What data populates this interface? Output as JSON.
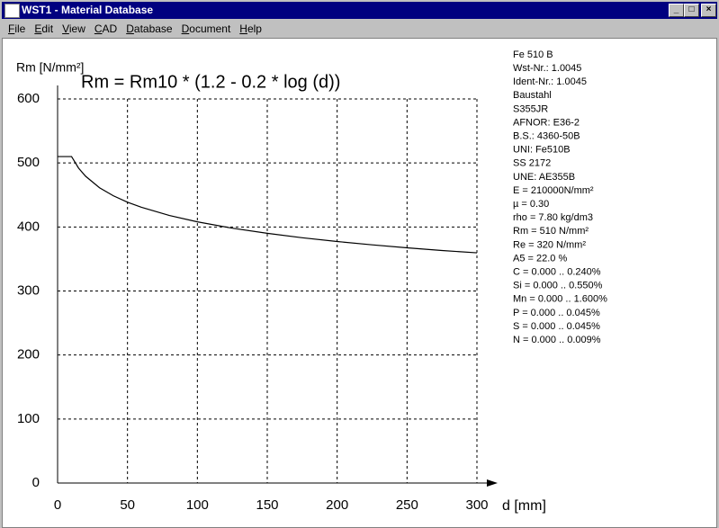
{
  "window_title": "WST1  -  Material Database",
  "menu": [
    "File",
    "Edit",
    "View",
    "CAD",
    "Database",
    "Document",
    "Help"
  ],
  "chart_data": {
    "type": "line",
    "title": "Rm = Rm10 * (1.2 - 0.2 * log (d))",
    "y_label": "Rm [N/mm²]",
    "x_label": "d [mm]",
    "x": [
      0,
      5,
      10,
      15,
      20,
      30,
      40,
      50,
      60,
      80,
      100,
      125,
      150,
      175,
      200,
      225,
      250,
      275,
      300
    ],
    "series": [
      {
        "name": "Rm",
        "color": "#000000",
        "values": [
          510,
          510,
          510,
          492,
          479.3,
          461.3,
          448.6,
          438.7,
          430.7,
          417.9,
          408,
          398.1,
          390.1,
          383.2,
          377.3,
          372.1,
          367.4,
          363.2,
          359.6
        ]
      }
    ],
    "xlim": [
      0,
      300
    ],
    "ylim": [
      0,
      600
    ],
    "xticks": [
      0,
      50,
      100,
      150,
      200,
      250,
      300
    ],
    "yticks": [
      0,
      100,
      200,
      300,
      400,
      500,
      600
    ],
    "grid": true
  },
  "info": [
    "Fe 510 B",
    "Wst-Nr.: 1.0045",
    "Ident-Nr.: 1.0045",
    "Baustahl",
    "S355JR",
    "AFNOR: E36-2",
    "B.S.: 4360-50B",
    "UNI: Fe510B",
    "SS 2172",
    "UNE: AE355B",
    "E = 210000N/mm²",
    "µ =  0.30",
    "rho =  7.80 kg/dm3",
    "Rm =  510 N/mm²",
    "Re =  320 N/mm²",
    "A5 = 22.0 %",
    "C = 0.000 .. 0.240%",
    "Si = 0.000 .. 0.550%",
    "Mn = 0.000 .. 1.600%",
    "P = 0.000 .. 0.045%",
    "S = 0.000 .. 0.045%",
    "N = 0.000 .. 0.009%"
  ]
}
